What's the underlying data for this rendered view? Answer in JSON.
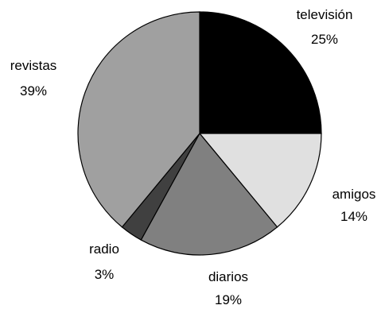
{
  "chart_data": {
    "type": "pie",
    "title": "",
    "slices": [
      {
        "label": "televisión",
        "value": 25,
        "percent_label": "25%",
        "color": "#000000"
      },
      {
        "label": "amigos",
        "value": 14,
        "percent_label": "14%",
        "color": "#e0e0e0"
      },
      {
        "label": "diarios",
        "value": 19,
        "percent_label": "19%",
        "color": "#808080"
      },
      {
        "label": "radio",
        "value": 3,
        "percent_label": "3%",
        "color": "#404040"
      },
      {
        "label": "revistas",
        "value": 39,
        "percent_label": "39%",
        "color": "#a0a0a0"
      }
    ],
    "start": "12 o'clock",
    "direction": "clockwise",
    "legend": "none"
  }
}
